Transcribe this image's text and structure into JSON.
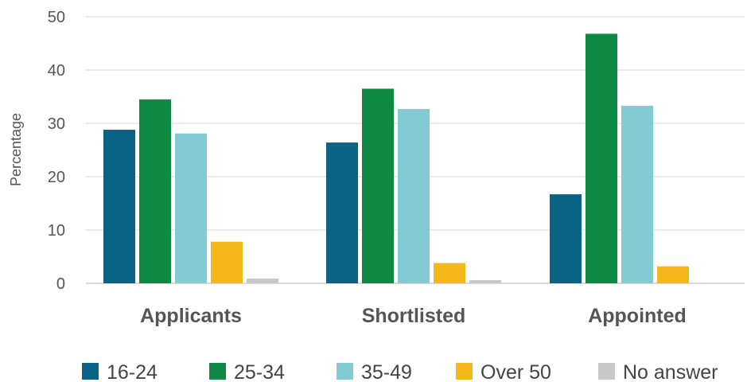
{
  "chart_data": {
    "type": "bar",
    "title": "",
    "xlabel": "",
    "ylabel": "Percentage",
    "ylim": [
      0,
      50
    ],
    "yticks": [
      0,
      10,
      20,
      30,
      40,
      50
    ],
    "grid": true,
    "legend_position": "bottom",
    "categories": [
      "Applicants",
      "Shortlisted",
      "Appointed"
    ],
    "series": [
      {
        "name": "16-24",
        "color": "#0a6285",
        "values": [
          28.8,
          26.4,
          16.7
        ]
      },
      {
        "name": "25-34",
        "color": "#0e8a44",
        "values": [
          34.5,
          36.5,
          46.8
        ]
      },
      {
        "name": "35-49",
        "color": "#83cbd3",
        "values": [
          28.1,
          32.7,
          33.3
        ]
      },
      {
        "name": "Over 50",
        "color": "#f6b71a",
        "values": [
          7.8,
          3.8,
          3.2
        ]
      },
      {
        "name": "No answer",
        "color": "#c8c8c8",
        "values": [
          0.9,
          0.6,
          0.0
        ]
      }
    ]
  }
}
